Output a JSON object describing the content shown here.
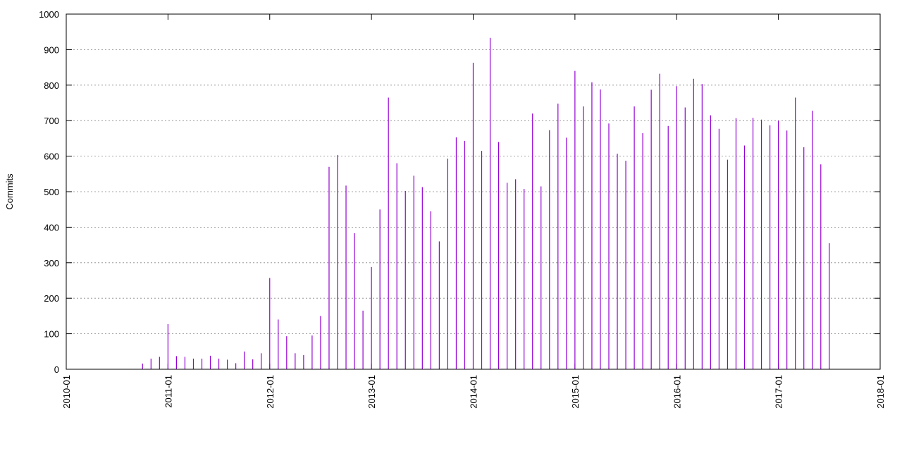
{
  "chart_data": {
    "type": "bar",
    "y_label": "Commits",
    "color": "#9400d3",
    "x": [
      "2010-10",
      "2010-11",
      "2010-12",
      "2011-01",
      "2011-02",
      "2011-03",
      "2011-04",
      "2011-05",
      "2011-06",
      "2011-07",
      "2011-08",
      "2011-09",
      "2011-10",
      "2011-11",
      "2011-12",
      "2012-01",
      "2012-02",
      "2012-03",
      "2012-04",
      "2012-05",
      "2012-06",
      "2012-07",
      "2012-08",
      "2012-09",
      "2012-10",
      "2012-11",
      "2012-12",
      "2013-01",
      "2013-02",
      "2013-03",
      "2013-04",
      "2013-05",
      "2013-06",
      "2013-07",
      "2013-08",
      "2013-09",
      "2013-10",
      "2013-11",
      "2013-12",
      "2014-01",
      "2014-02",
      "2014-03",
      "2014-04",
      "2014-05",
      "2014-06",
      "2014-07",
      "2014-08",
      "2014-09",
      "2014-10",
      "2014-11",
      "2014-12",
      "2015-01",
      "2015-02",
      "2015-03",
      "2015-04",
      "2015-05",
      "2015-06",
      "2015-07",
      "2015-08",
      "2015-09",
      "2015-10",
      "2015-11",
      "2015-12",
      "2016-01",
      "2016-02",
      "2016-03",
      "2016-04",
      "2016-05",
      "2016-06",
      "2016-07",
      "2016-08",
      "2016-09",
      "2016-10",
      "2016-11",
      "2016-12",
      "2017-01",
      "2017-02",
      "2017-03",
      "2017-04",
      "2017-05",
      "2017-06",
      "2017-07"
    ],
    "values": [
      16,
      30,
      35,
      127,
      37,
      35,
      30,
      30,
      38,
      30,
      27,
      17,
      50,
      28,
      45,
      257,
      140,
      93,
      45,
      40,
      95,
      150,
      570,
      603,
      517,
      383,
      165,
      288,
      450,
      765,
      580,
      502,
      545,
      513,
      445,
      360,
      593,
      653,
      643,
      863,
      615,
      933,
      640,
      525,
      535,
      508,
      720,
      515,
      673,
      748,
      652,
      840,
      740,
      808,
      788,
      692,
      607,
      587,
      740,
      665,
      787,
      832,
      685,
      797,
      737,
      818,
      803,
      715,
      677,
      590,
      707,
      630,
      708,
      703,
      687,
      700,
      672,
      765,
      625,
      728,
      577,
      355
    ],
    "xlim": [
      "2010-01",
      "2018-01"
    ],
    "xticks": [
      "2010-01",
      "2011-01",
      "2012-01",
      "2013-01",
      "2014-01",
      "2015-01",
      "2016-01",
      "2017-01",
      "2018-01"
    ],
    "ylim": [
      0,
      1000
    ],
    "yticks": [
      0,
      100,
      200,
      300,
      400,
      500,
      600,
      700,
      800,
      900,
      1000
    ],
    "grid": true
  }
}
